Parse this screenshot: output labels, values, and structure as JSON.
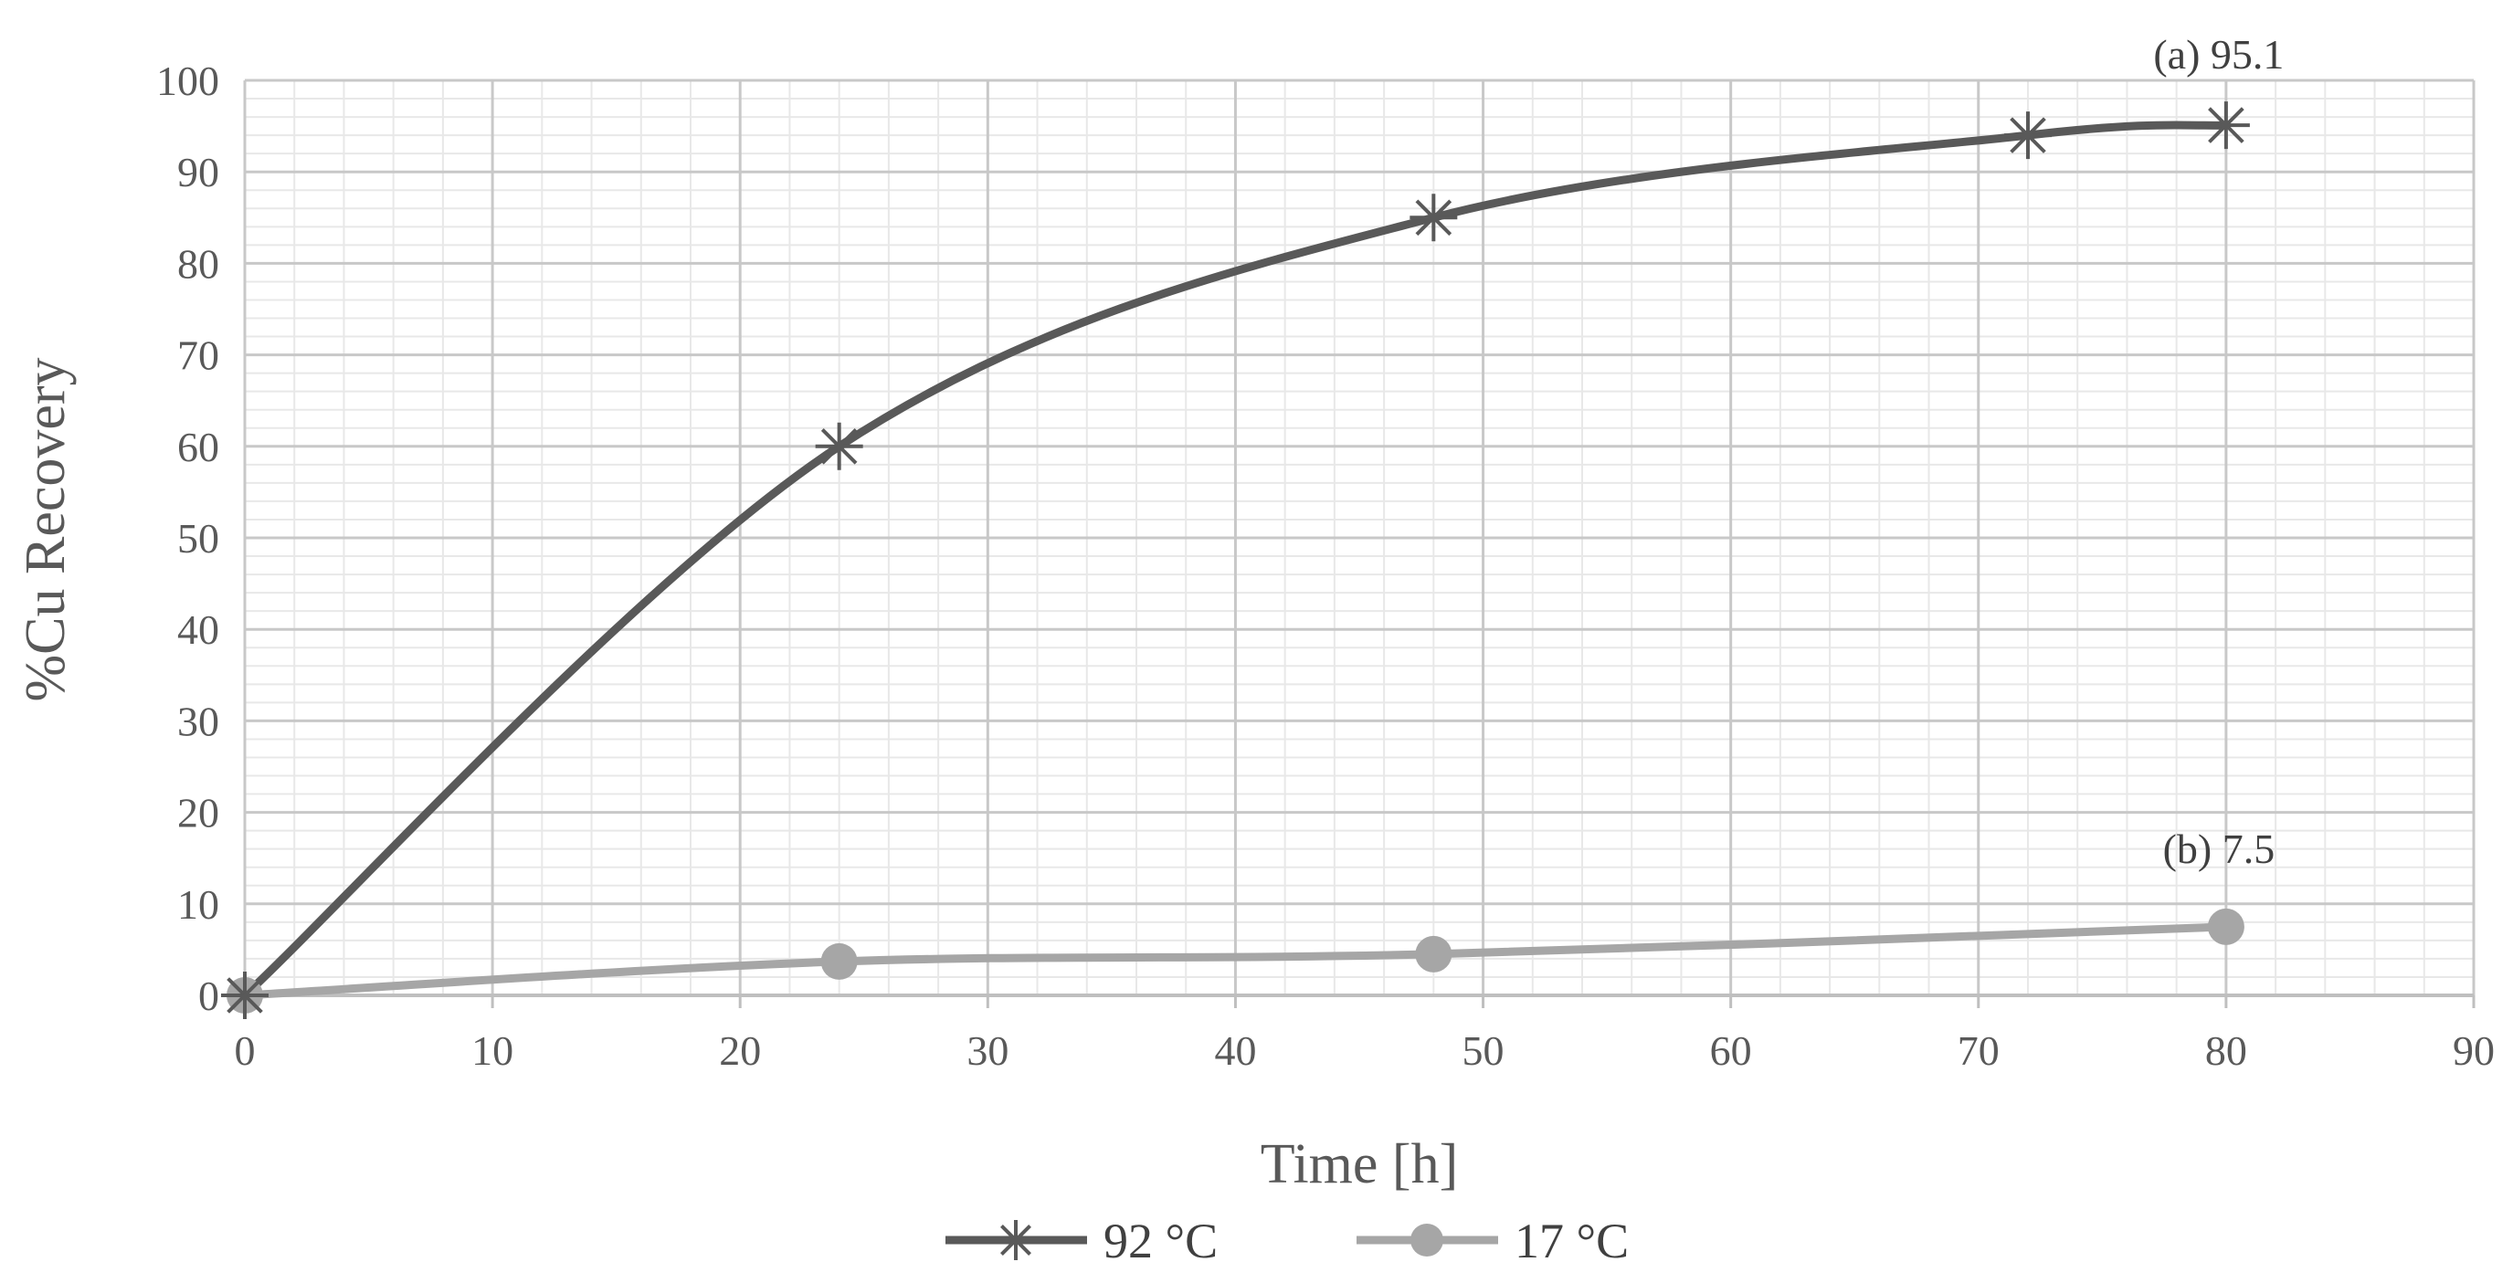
{
  "chart_data": {
    "type": "line",
    "title": "",
    "xlabel": "Time [h]",
    "ylabel": "%Cu Recovery",
    "xlim": [
      0,
      90
    ],
    "ylim": [
      0,
      100
    ],
    "xticks": [
      0,
      10,
      20,
      30,
      40,
      50,
      60,
      70,
      80,
      90
    ],
    "yticks": [
      0,
      10,
      20,
      30,
      40,
      50,
      60,
      70,
      80,
      90,
      100
    ],
    "grid": true,
    "legend_position": "bottom",
    "series": [
      {
        "name": "92 °C",
        "marker": "star",
        "color": "#595959",
        "x": [
          0,
          24,
          48,
          72,
          80
        ],
        "y": [
          0,
          60,
          85,
          94,
          95.1
        ]
      },
      {
        "name": "17 °C",
        "marker": "circle",
        "color": "#a6a6a6",
        "x": [
          0,
          24,
          48,
          80
        ],
        "y": [
          0,
          3.7,
          4.5,
          7.5
        ]
      }
    ],
    "annotations": [
      {
        "text": "(a) 95.1",
        "x": 80,
        "y": 95.1
      },
      {
        "text": "(b) 7.5",
        "x": 80,
        "y": 7.5
      }
    ]
  }
}
